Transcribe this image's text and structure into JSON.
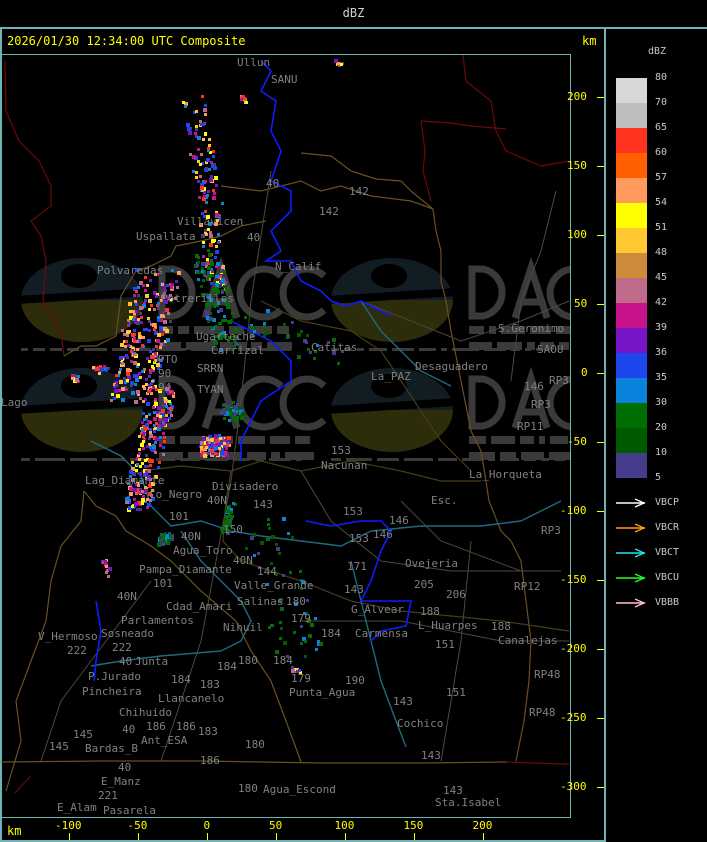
{
  "header": {
    "title": "dBZ"
  },
  "map": {
    "timestamp": "2026/01/30 12:34:00 UTC Composite",
    "axis_unit": "km",
    "x_ticks": [
      "-100",
      "-50",
      "0",
      "50",
      "100",
      "150",
      "200"
    ],
    "y_ticks": [
      "200",
      "150",
      "100",
      "50",
      "0",
      "-50",
      "-100",
      "-150",
      "-200",
      "-250",
      "-300"
    ],
    "place_labels": [
      "Ullun",
      "SANU",
      "40",
      "40",
      "142",
      "142",
      "Uspallata",
      "Villavicen",
      "N_Calif",
      "Polvaredas",
      "Potrerillos",
      "Ugarteche",
      "Carrizal",
      "Catitas",
      "TPTO",
      "SRRN",
      "90",
      "94",
      "TYAN",
      "La_PAZ",
      "Desaguadero",
      "S.Geronimo",
      "SAOU",
      "146",
      "RP3",
      "RP3",
      "RP11",
      "153",
      "Nacunan",
      "La_Horqueta",
      "Esc.",
      "Lag_Diamante",
      "Co_Negro",
      "Divisadero",
      "40N",
      "143",
      "101",
      "150",
      "40N",
      "Agua_Toro",
      "40N",
      "Pampa_Diamante",
      "101",
      "40N",
      "Cdad_Amari",
      "Parlamentos",
      "Sosneado",
      "Salinas",
      "180",
      "Nihuil",
      "144",
      "Valle_Grande",
      "179",
      "184",
      "153",
      "146",
      "153",
      "146",
      "171",
      "Ovejeria",
      "205",
      "206",
      "143",
      "G_Alvear",
      "188",
      "L_Huarpes",
      "Carmensa",
      "188",
      "Canalejas",
      "RP12",
      "RP3",
      "151",
      "151",
      "RP48",
      "RP48",
      "V_Hermoso",
      "222",
      "222",
      "40",
      "Junta",
      "180",
      "184",
      "184",
      "184",
      "179",
      "190",
      "Punta_Agua",
      "P.Jurado",
      "Pincheira",
      "183",
      "Llancanelo",
      "Chihuido",
      "186",
      "186",
      "40",
      "Ant_ESA",
      "183",
      "145",
      "145",
      "Bardas_B",
      "180",
      "186",
      "143",
      "Cochico",
      "143",
      "143",
      "Sta.Isabel",
      "40",
      "E_Manz",
      "221",
      "E_Alam",
      "Pasarela",
      "180",
      "Agua_Escond",
      "Lago"
    ],
    "watermark": {
      "name": "DACC",
      "line1": "Dirección de Agricultura",
      "line2": "y Contingencias Climáticas",
      "url": "http://www.contingencias.mendoza.gov.ar"
    }
  },
  "legend": {
    "title": "dBZ",
    "labels": [
      "80",
      "70",
      "65",
      "60",
      "57",
      "54",
      "51",
      "48",
      "45",
      "42",
      "39",
      "36",
      "35",
      "30",
      "20",
      "10",
      "5"
    ],
    "colors": [
      "#d8d8d8",
      "#bebebe",
      "#ff3320",
      "#ff5f00",
      "#ff9a5c",
      "#ffff00",
      "#ffc832",
      "#cd8a3c",
      "#c06a8a",
      "#c8148c",
      "#7814c8",
      "#1e46ee",
      "#0a82dc",
      "#006e00",
      "#005a00",
      "#463c8c"
    ],
    "arrows": [
      {
        "label": "VBCP",
        "color": "#ffffff"
      },
      {
        "label": "VBCR",
        "color": "#ffa000"
      },
      {
        "label": "VBCT",
        "color": "#20e8e8"
      },
      {
        "label": "VBCU",
        "color": "#20ff20"
      },
      {
        "label": "VBBB",
        "color": "#ffc0c8"
      }
    ]
  }
}
